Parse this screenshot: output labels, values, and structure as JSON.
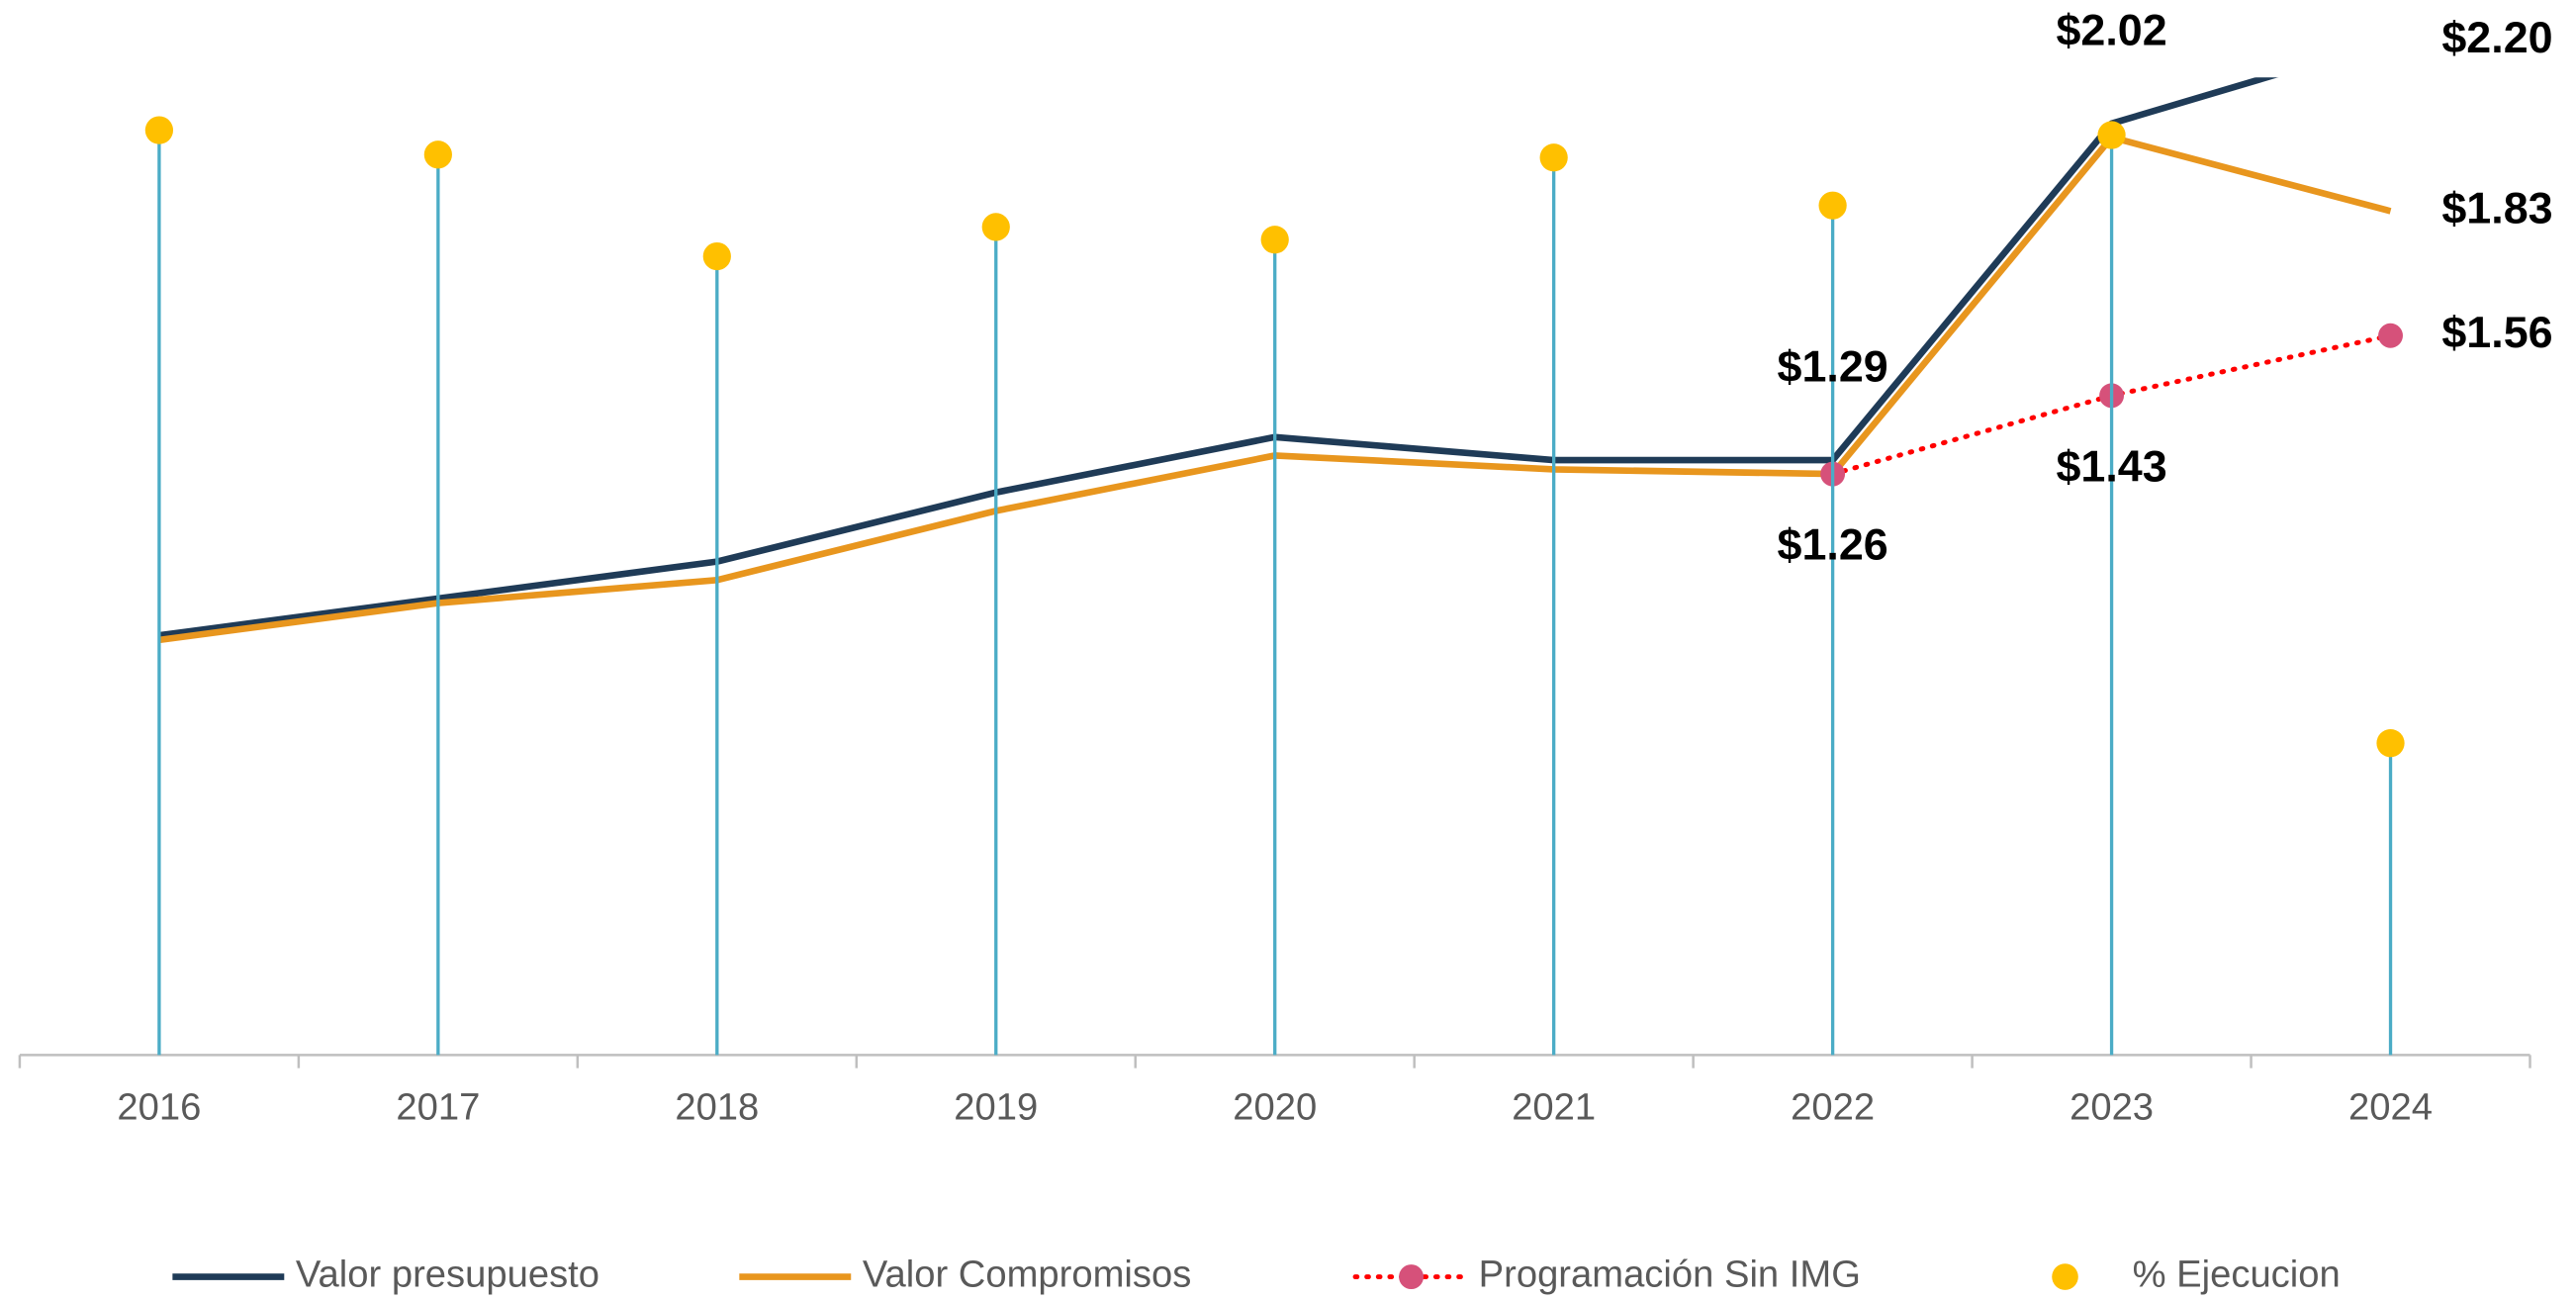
{
  "chart_data": {
    "type": "line",
    "categories": [
      "2016",
      "2017",
      "2018",
      "2019",
      "2020",
      "2021",
      "2022",
      "2023",
      "2024"
    ],
    "ylim": [
      0,
      2.12
    ],
    "y2lim": [
      0,
      100
    ],
    "series": [
      {
        "name": "Valor presupuesto",
        "color": "#1f3b57",
        "style": "solid",
        "values": [
          0.91,
          0.99,
          1.07,
          1.22,
          1.34,
          1.29,
          1.29,
          2.02,
          2.2
        ],
        "value_labels": [
          null,
          null,
          null,
          null,
          null,
          null,
          "$1.29",
          "$2.02",
          "$2.20"
        ]
      },
      {
        "name": "Valor Compromisos",
        "color": "#e8961e",
        "style": "solid",
        "values": [
          0.9,
          0.98,
          1.03,
          1.18,
          1.3,
          1.27,
          1.26,
          1.99,
          1.83
        ],
        "value_labels": [
          null,
          null,
          null,
          null,
          null,
          null,
          "$1.26",
          null,
          "$1.83"
        ]
      },
      {
        "name": "Programación Sin IMG",
        "color": "#ff0000",
        "marker_color": "#d6517a",
        "style": "dotted",
        "values": [
          null,
          null,
          null,
          null,
          null,
          null,
          1.26,
          1.43,
          1.56
        ],
        "value_labels": [
          null,
          null,
          null,
          null,
          null,
          null,
          null,
          "$1.43",
          "$1.56"
        ]
      },
      {
        "name": "% Ejecucion",
        "color": "#ffc000",
        "stem_color": "#4bacc6",
        "style": "dots",
        "axis": "y2",
        "values": [
          94.6,
          92.1,
          81.7,
          84.7,
          83.4,
          91.8,
          86.9,
          94.1,
          31.9
        ]
      }
    ]
  }
}
